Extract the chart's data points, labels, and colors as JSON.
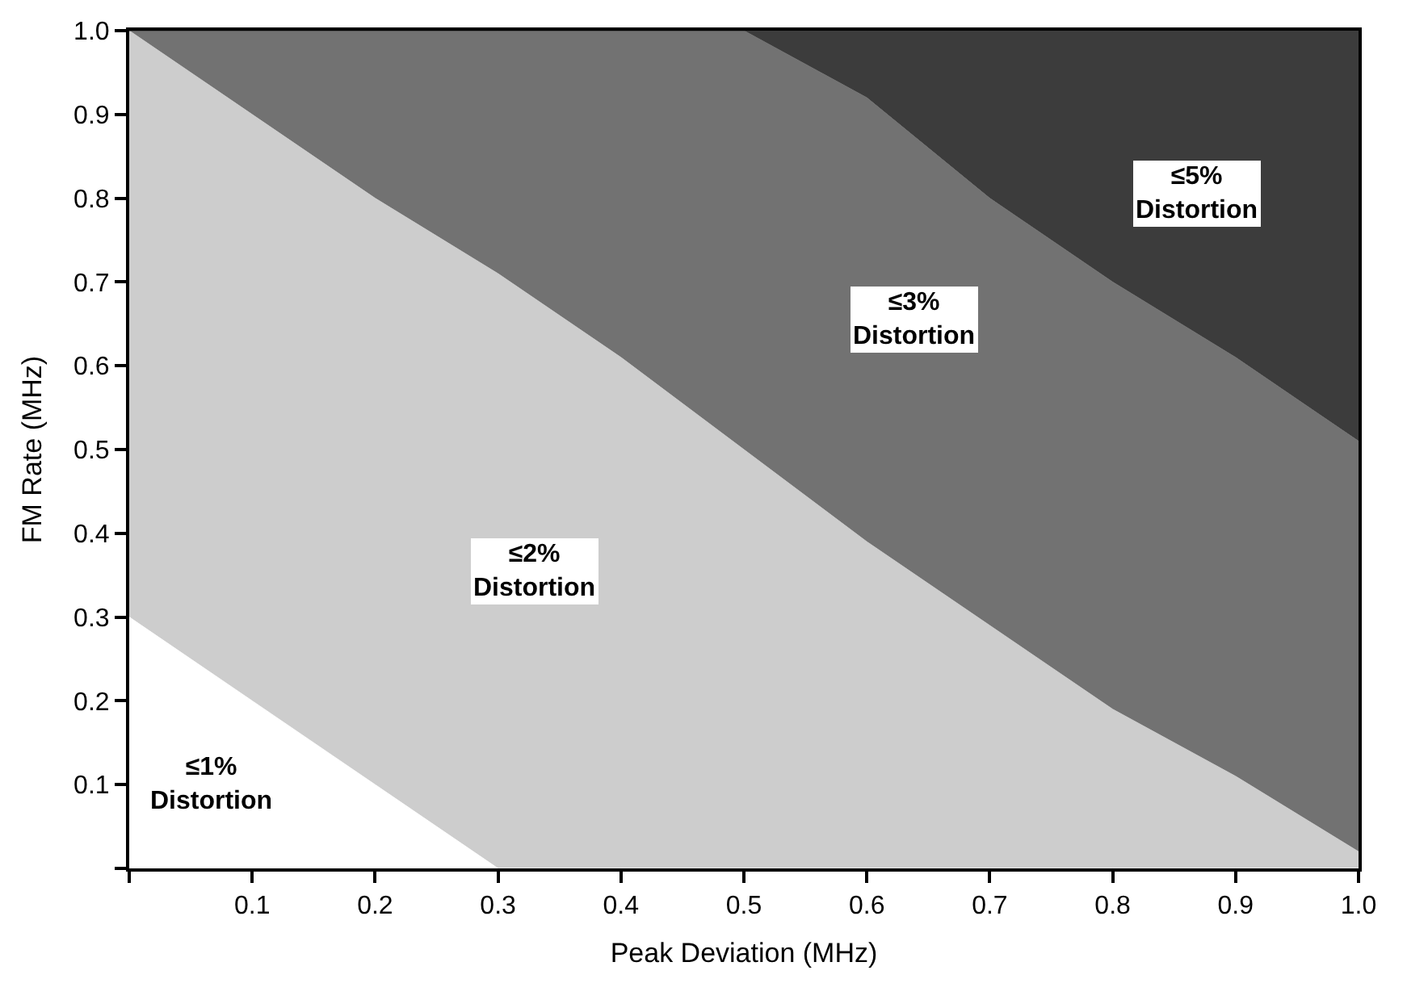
{
  "chart_data": {
    "type": "area",
    "stacked": true,
    "xlabel": "Peak Deviation (MHz)",
    "ylabel": "FM Rate (MHz)",
    "x": [
      0,
      0.1,
      0.2,
      0.3,
      0.4,
      0.5,
      0.6,
      0.7,
      0.8,
      0.9,
      1.0
    ],
    "xlim": [
      0,
      1.0
    ],
    "ylim": [
      0,
      1.0
    ],
    "xticks": [
      {
        "value": 0,
        "label": null
      },
      0.1,
      0.2,
      0.3,
      0.4,
      0.5,
      0.6,
      0.7,
      0.8,
      0.9,
      {
        "value": 1.0,
        "label": "1.0"
      }
    ],
    "yticks": [
      {
        "value": 0,
        "label": null
      },
      0.1,
      0.2,
      0.3,
      0.4,
      0.5,
      0.6,
      0.7,
      0.8,
      0.9,
      {
        "value": 1.0,
        "label": "1.0"
      }
    ],
    "series": [
      {
        "color": "#ffffff",
        "values": [
          0.3,
          0.2,
          0.1,
          0,
          0,
          0,
          0,
          0,
          0,
          0,
          0
        ]
      },
      {
        "color": "#cdcdcd",
        "values": [
          0.7,
          0.7,
          0.7,
          0.71,
          0.61,
          0.5,
          0.39,
          0.29,
          0.19,
          0.11,
          0.02
        ]
      },
      {
        "color": "#727272",
        "values": [
          0,
          0.1,
          0.2,
          0.29,
          0.39,
          0.5,
          0.53,
          0.51,
          0.51,
          0.5,
          0.49
        ]
      },
      {
        "color": "#3c3c3c",
        "values": [
          0,
          0,
          0,
          0,
          0,
          0,
          0.08,
          0.2,
          0.3,
          0.39,
          0.49
        ]
      }
    ],
    "annotations": [
      "≤1%\nDistortion",
      "≤2%\nDistortion",
      "≤3%\nDistortion",
      "≤5%\nDistortion"
    ]
  }
}
